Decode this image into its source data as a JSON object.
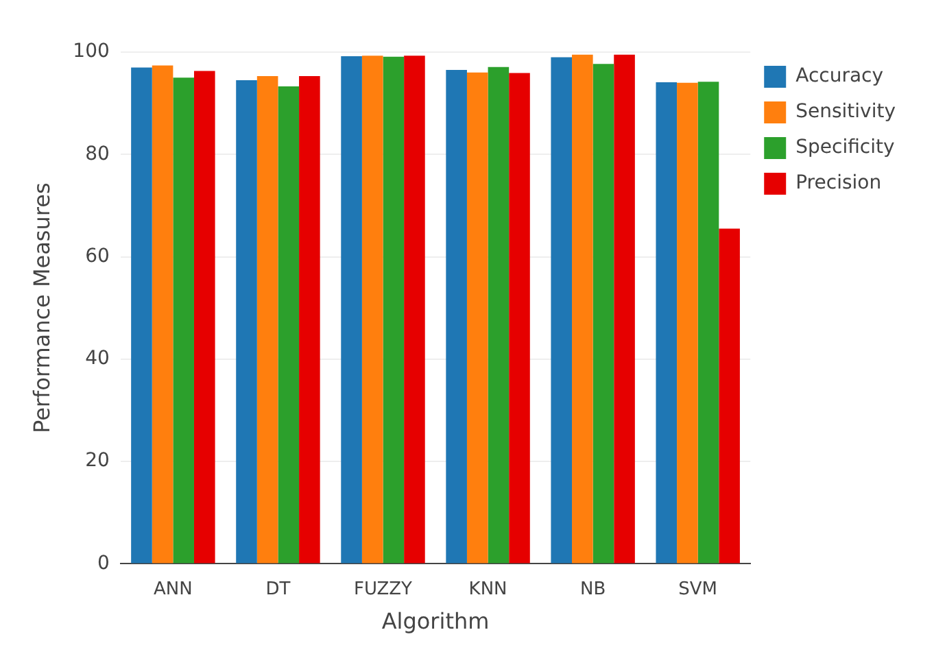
{
  "chart_data": {
    "type": "bar",
    "xlabel": "Algorithm",
    "ylabel": "Performance Measures",
    "categories": [
      "ANN",
      "DT",
      "FUZZY",
      "KNN",
      "NB",
      "SVM"
    ],
    "series": [
      {
        "name": "Accuracy",
        "color": "#1f77b4",
        "values": [
          97.0,
          94.5,
          99.2,
          96.5,
          99.0,
          94.1
        ]
      },
      {
        "name": "Sensitivity",
        "color": "#ff7f0e",
        "values": [
          97.4,
          95.3,
          99.3,
          96.0,
          99.5,
          94.0
        ]
      },
      {
        "name": "Specificity",
        "color": "#2ca02c",
        "values": [
          95.0,
          93.3,
          99.1,
          97.1,
          97.7,
          94.2
        ]
      },
      {
        "name": "Precision",
        "color": "#e60000",
        "values": [
          96.3,
          95.3,
          99.3,
          95.9,
          99.5,
          65.5
        ]
      }
    ],
    "ylim": [
      0,
      100
    ],
    "yticks": [
      0,
      20,
      40,
      60,
      80,
      100
    ],
    "grid": "y",
    "legend": "top right"
  }
}
